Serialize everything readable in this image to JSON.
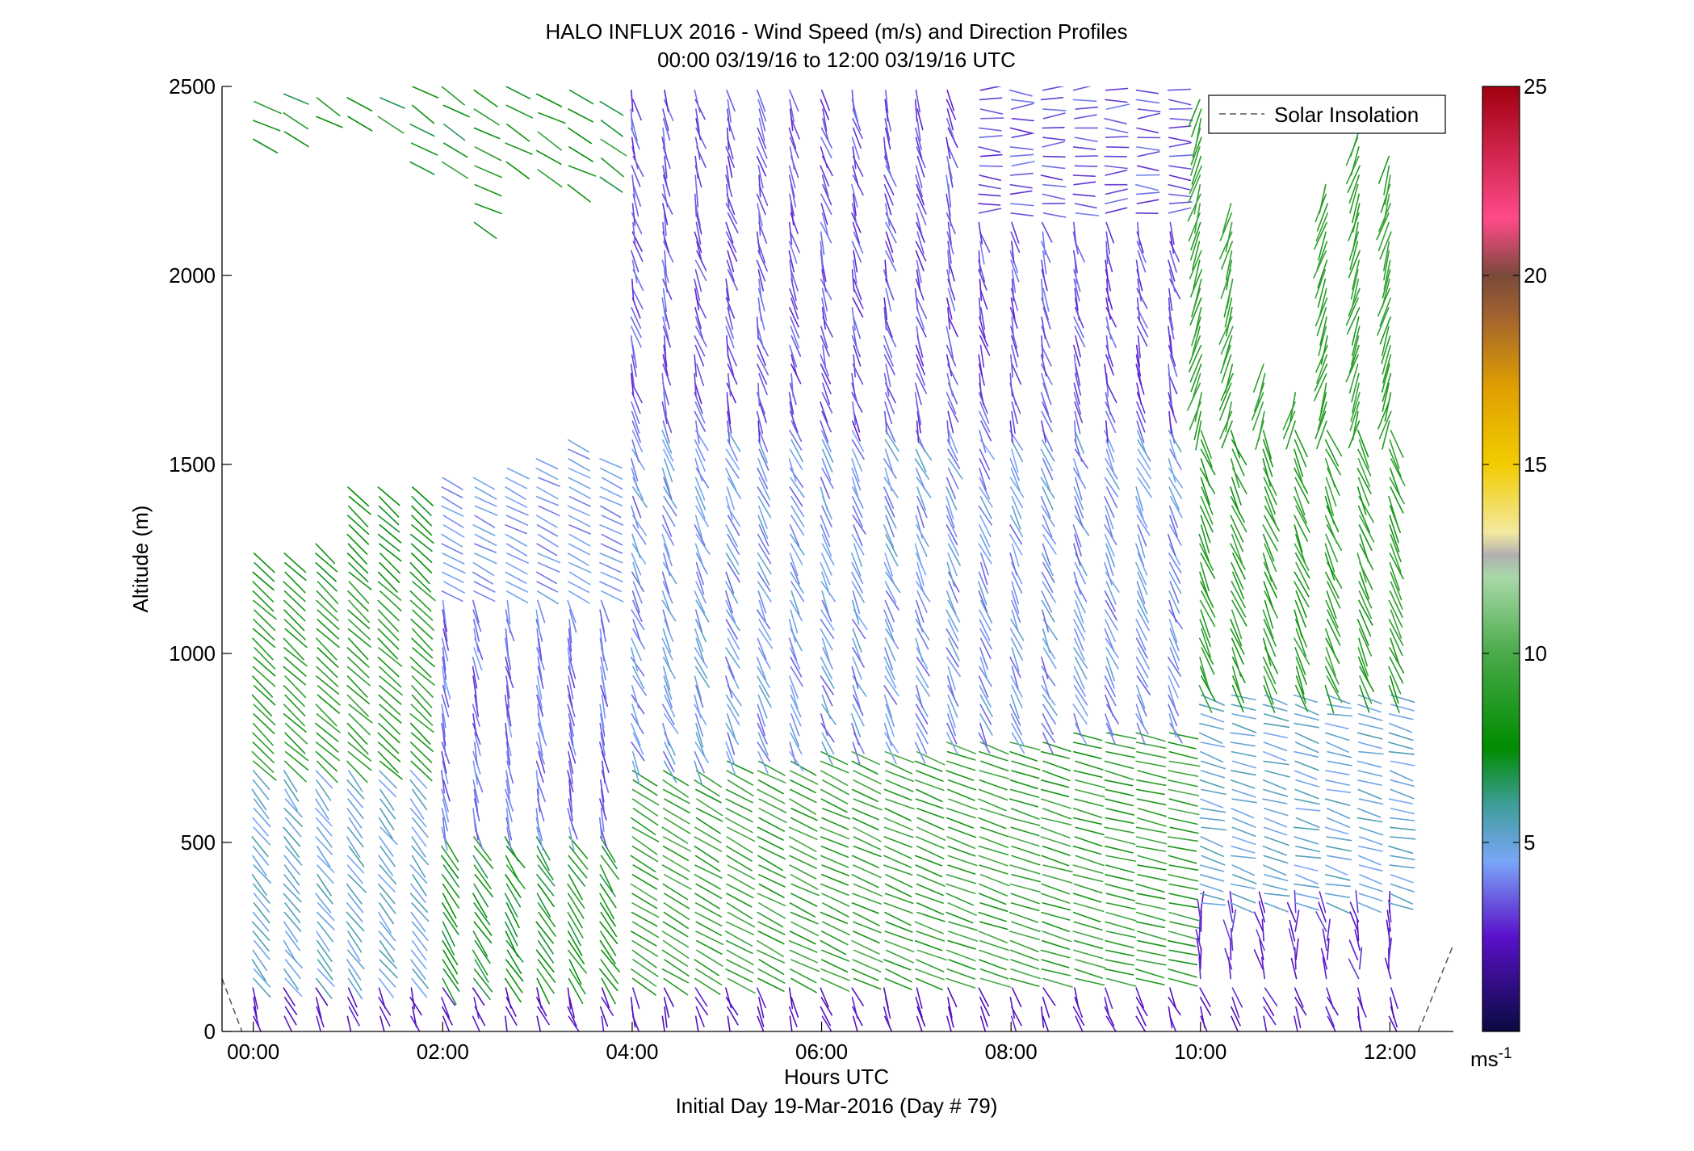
{
  "chart_data": {
    "type": "quiver",
    "title": "HALO INFLUX 2016 - Wind Speed (m/s) and Direction Profiles",
    "subtitle": "00:00 03/19/16 to 12:00 03/19/16  UTC",
    "xlabel": "Hours UTC",
    "xlabel2": "Initial Day 19-Mar-2016 (Day # 79)",
    "ylabel": "Altitude (m)",
    "xlim": [
      -0.33,
      12.67
    ],
    "ylim": [
      0,
      2500
    ],
    "x_ticks": [
      0,
      2,
      4,
      6,
      8,
      10,
      12
    ],
    "x_tick_labels": [
      "00:00",
      "02:00",
      "04:00",
      "06:00",
      "08:00",
      "10:00",
      "12:00"
    ],
    "y_ticks": [
      0,
      500,
      1000,
      1500,
      2000,
      2500
    ],
    "y_tick_labels": [
      "0",
      "500",
      "1000",
      "1500",
      "2000",
      "2500"
    ],
    "colorbar": {
      "range": [
        0,
        25
      ],
      "ticks": [
        5,
        10,
        15,
        20,
        25
      ],
      "tick_labels": [
        "5",
        "10",
        "15",
        "20",
        "25"
      ],
      "unit_label": "ms",
      "unit_exponent": "-1",
      "stops": [
        {
          "v": 0,
          "color": "#0a0a40"
        },
        {
          "v": 2.5,
          "color": "#5a10c8"
        },
        {
          "v": 4.5,
          "color": "#7aa6f8"
        },
        {
          "v": 6,
          "color": "#3f9d9a"
        },
        {
          "v": 7.5,
          "color": "#008c00"
        },
        {
          "v": 10,
          "color": "#4aaa4a"
        },
        {
          "v": 12,
          "color": "#a8d8a8"
        },
        {
          "v": 12.6,
          "color": "#b0b0b0"
        },
        {
          "v": 13.2,
          "color": "#f3e9a0"
        },
        {
          "v": 15,
          "color": "#f2cc00"
        },
        {
          "v": 17,
          "color": "#e0a000"
        },
        {
          "v": 19,
          "color": "#a06030"
        },
        {
          "v": 20,
          "color": "#7a4a3a"
        },
        {
          "v": 21.5,
          "color": "#ff4a8a"
        },
        {
          "v": 25,
          "color": "#a00010"
        }
      ]
    },
    "legend": {
      "entries": [
        {
          "name": "Solar Insolation",
          "style": "dashed"
        }
      ],
      "position": "top-right"
    },
    "solar_insolation": [
      {
        "x": [
          -0.33,
          -0.12
        ],
        "y": [
          140,
          0
        ]
      },
      {
        "x": [
          12.3,
          12.67
        ],
        "y": [
          0,
          230
        ]
      }
    ],
    "profiles": [
      {
        "t": 0.0,
        "top": 1280,
        "regime": "d"
      },
      {
        "t": 0.33,
        "top": 1270,
        "regime": "d"
      },
      {
        "t": 0.67,
        "top": 1300,
        "regime": "d"
      },
      {
        "t": 1.0,
        "top": 1460,
        "regime": "d"
      },
      {
        "t": 1.33,
        "top": 1440,
        "regime": "d"
      },
      {
        "t": 1.67,
        "top": 1440,
        "regime": "d"
      },
      {
        "t": 2.0,
        "top": 1480,
        "regime": "d"
      },
      {
        "t": 2.33,
        "top": 1480,
        "regime": "d"
      },
      {
        "t": 2.67,
        "top": 1510,
        "regime": "d"
      },
      {
        "t": 3.0,
        "top": 1520,
        "regime": "d"
      },
      {
        "t": 3.33,
        "top": 1580,
        "regime": "d"
      },
      {
        "t": 3.67,
        "top": 1520,
        "regime": "d"
      },
      {
        "t": 4.0,
        "top": 2500,
        "regime": "m"
      },
      {
        "t": 4.33,
        "top": 2500,
        "regime": "m"
      },
      {
        "t": 4.67,
        "top": 2500,
        "regime": "m"
      },
      {
        "t": 5.0,
        "top": 2500,
        "regime": "m"
      },
      {
        "t": 5.33,
        "top": 2500,
        "regime": "m"
      },
      {
        "t": 5.67,
        "top": 2500,
        "regime": "m"
      },
      {
        "t": 6.0,
        "top": 2500,
        "regime": "m"
      },
      {
        "t": 6.33,
        "top": 2500,
        "regime": "m"
      },
      {
        "t": 6.67,
        "top": 2500,
        "regime": "m"
      },
      {
        "t": 7.0,
        "top": 2500,
        "regime": "m"
      },
      {
        "t": 7.33,
        "top": 2500,
        "regime": "m"
      },
      {
        "t": 7.67,
        "top": 2500,
        "regime": "m"
      },
      {
        "t": 8.0,
        "top": 2500,
        "regime": "m"
      },
      {
        "t": 8.33,
        "top": 2500,
        "regime": "m"
      },
      {
        "t": 8.67,
        "top": 2500,
        "regime": "m"
      },
      {
        "t": 9.0,
        "top": 2500,
        "regime": "m"
      },
      {
        "t": 9.33,
        "top": 2500,
        "regime": "m"
      },
      {
        "t": 9.67,
        "top": 2500,
        "regime": "m"
      },
      {
        "t": 10.0,
        "top": 2480,
        "regime": "l"
      },
      {
        "t": 10.33,
        "top": 2200,
        "regime": "l"
      },
      {
        "t": 10.67,
        "top": 1780,
        "regime": "l"
      },
      {
        "t": 11.0,
        "top": 1700,
        "regime": "l"
      },
      {
        "t": 11.33,
        "top": 2240,
        "regime": "l"
      },
      {
        "t": 11.67,
        "top": 2400,
        "regime": "l"
      },
      {
        "t": 12.0,
        "top": 2330,
        "regime": "l"
      }
    ],
    "upper_scatter": [
      {
        "t": 0.0,
        "z0": 2360,
        "z1": 2500
      },
      {
        "t": 0.33,
        "z0": 2380,
        "z1": 2500
      },
      {
        "t": 0.67,
        "z0": 2420,
        "z1": 2500
      },
      {
        "t": 1.0,
        "z0": 2420,
        "z1": 2500
      },
      {
        "t": 1.33,
        "z0": 2420,
        "z1": 2500
      },
      {
        "t": 1.67,
        "z0": 2300,
        "z1": 2500
      },
      {
        "t": 2.0,
        "z0": 2300,
        "z1": 2500
      },
      {
        "t": 2.33,
        "z0": 2140,
        "z1": 2500
      },
      {
        "t": 2.67,
        "z0": 2300,
        "z1": 2500
      },
      {
        "t": 3.0,
        "z0": 2280,
        "z1": 2500
      },
      {
        "t": 3.33,
        "z0": 2240,
        "z1": 2500
      },
      {
        "t": 3.67,
        "z0": 2260,
        "z1": 2500
      }
    ]
  }
}
